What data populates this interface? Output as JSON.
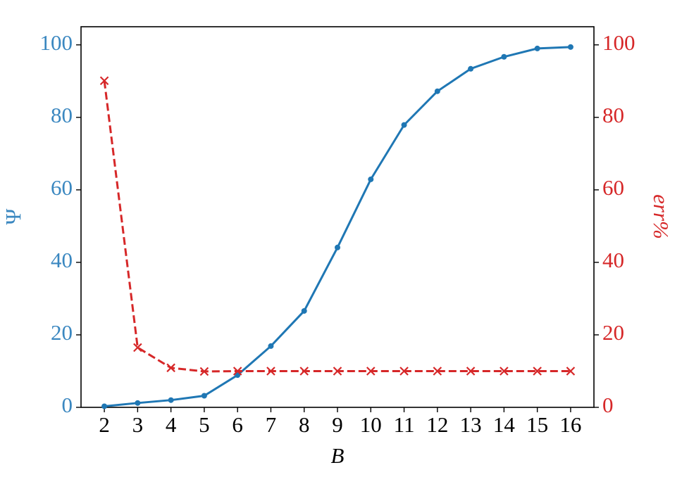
{
  "chart_data": {
    "type": "line",
    "x": [
      2,
      3,
      4,
      5,
      6,
      7,
      8,
      9,
      10,
      11,
      12,
      13,
      14,
      15,
      16
    ],
    "xlabel": "B",
    "ylabel": "Ψ",
    "y2label": "err%",
    "xlim": [
      1.3,
      16.7
    ],
    "xticks": [
      2,
      3,
      4,
      5,
      6,
      7,
      8,
      9,
      10,
      11,
      12,
      13,
      14,
      15,
      16
    ],
    "ylim": [
      0,
      105
    ],
    "yticks": [
      0,
      20,
      40,
      60,
      80,
      100
    ],
    "ycolor": "#3a87c0",
    "y2lim": [
      0,
      105
    ],
    "y2ticks": [
      0,
      20,
      40,
      60,
      80,
      100
    ],
    "y2color": "#d62728",
    "series": [
      {
        "name": "Ψ",
        "color": "#1f77b4",
        "marker": "circle",
        "linestyle": "solid",
        "values": [
          0.3,
          1.2,
          2,
          3.2,
          8.9,
          16.9,
          26.6,
          44.1,
          62.9,
          77.9,
          87.2,
          93.4,
          96.7,
          99,
          99.4
        ]
      },
      {
        "name": "err%",
        "color": "#d62728",
        "marker": "x",
        "linestyle": "dashed",
        "axis": "y2",
        "values": [
          90.1,
          16.5,
          10.9,
          9.9,
          10,
          10,
          10,
          10,
          10,
          10,
          10,
          10,
          10,
          10,
          10
        ]
      }
    ]
  }
}
